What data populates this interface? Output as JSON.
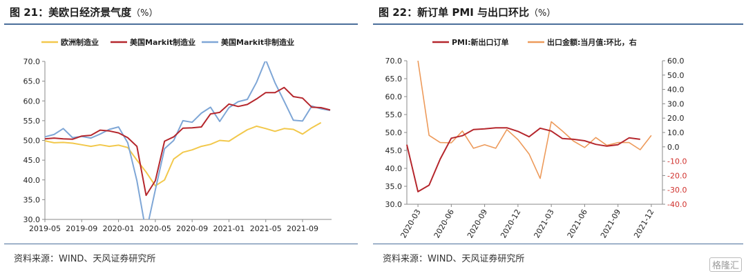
{
  "colors": {
    "yellow": "#F2C84B",
    "red": "#B5262C",
    "blue": "#7EA6D6",
    "orange": "#ED9A5A",
    "neg": "#D0312D"
  },
  "watermark": "格隆汇",
  "chart_data": [
    {
      "type": "line",
      "title": "图 21：美欧日经济景气度",
      "unit": "（%）",
      "source": "资料来源：WIND、天风证券研究所",
      "legend_position": "top",
      "grid": false,
      "x": [
        "2019-05",
        "2019-06",
        "2019-07",
        "2019-08",
        "2019-09",
        "2019-10",
        "2019-11",
        "2019-12",
        "2020-01",
        "2020-02",
        "2020-03",
        "2020-04",
        "2020-05",
        "2020-06",
        "2020-07",
        "2020-08",
        "2020-09",
        "2020-10",
        "2020-11",
        "2020-12",
        "2021-01",
        "2021-02",
        "2021-03",
        "2021-04",
        "2021-05",
        "2021-06",
        "2021-07",
        "2021-08",
        "2021-09",
        "2021-10",
        "2021-11",
        "2021-12"
      ],
      "xticks": [
        "2019-05",
        "2019-09",
        "2020-01",
        "2020-05",
        "2020-09",
        "2021-01",
        "2021-05",
        "2021-09"
      ],
      "yticks": [
        "30.0",
        "35.0",
        "40.0",
        "45.0",
        "50.0",
        "55.0",
        "60.0",
        "65.0",
        "70.0"
      ],
      "ylim": [
        30,
        70
      ],
      "series": [
        {
          "name": "欧洲制造业",
          "color": "#F2C84B",
          "values": [
            49.9,
            49.4,
            49.5,
            49.3,
            48.9,
            48.5,
            48.9,
            48.5,
            48.8,
            48.2,
            45.0,
            42.0,
            38.5,
            40.0,
            45.3,
            47.0,
            47.6,
            48.5,
            49.0,
            50.0,
            49.8,
            51.3,
            52.7,
            53.6,
            53.0,
            52.3,
            53.0,
            52.8,
            51.6,
            53.2,
            54.5,
            null
          ]
        },
        {
          "name": "美国Markit制造业",
          "color": "#B5262C",
          "values": [
            50.4,
            50.6,
            50.4,
            50.3,
            51.1,
            51.3,
            52.6,
            52.4,
            51.9,
            50.7,
            48.5,
            36.1,
            39.8,
            49.8,
            50.9,
            53.1,
            53.2,
            53.4,
            56.7,
            57.1,
            59.2,
            58.6,
            59.1,
            60.5,
            62.1,
            62.1,
            63.4,
            61.1,
            60.7,
            58.4,
            58.3,
            57.7
          ]
        },
        {
          "name": "美国Markit非制造业",
          "color": "#7EA6D6",
          "values": [
            50.9,
            51.5,
            53.0,
            50.7,
            51.0,
            50.6,
            51.6,
            52.8,
            53.4,
            49.4,
            39.8,
            26.7,
            37.5,
            47.9,
            50.0,
            55.0,
            54.6,
            56.9,
            58.4,
            54.8,
            58.3,
            59.8,
            60.4,
            64.7,
            70.4,
            64.6,
            59.9,
            55.1,
            54.9,
            58.7,
            58.0,
            57.6
          ]
        }
      ]
    },
    {
      "type": "line",
      "title": "图 22：新订单 PMI 与出口环比",
      "unit": "（%）",
      "source": "资料来源：WIND、天风证券研究所",
      "legend_position": "top",
      "grid": false,
      "x": [
        "2020-02",
        "2020-03",
        "2020-04",
        "2020-05",
        "2020-06",
        "2020-07",
        "2020-08",
        "2020-09",
        "2020-10",
        "2020-11",
        "2020-12",
        "2021-01",
        "2021-02",
        "2021-03",
        "2021-04",
        "2021-05",
        "2021-06",
        "2021-07",
        "2021-08",
        "2021-09",
        "2021-10",
        "2021-11",
        "2021-12",
        "2022-01"
      ],
      "xticks": [
        "2020-03",
        "2020-06",
        "2020-09",
        "2020-12",
        "2021-03",
        "2021-06",
        "2021-09",
        "2021-12"
      ],
      "yticks": [
        "30.0",
        "35.0",
        "40.0",
        "45.0",
        "50.0",
        "55.0",
        "60.0",
        "65.0",
        "70.0"
      ],
      "ylim": [
        30,
        70
      ],
      "y2ticks": [
        "-40.0",
        "-30.0",
        "-20.0",
        "-10.0",
        "0.0",
        "10.0",
        "20.0",
        "30.0",
        "40.0",
        "50.0",
        "60.0"
      ],
      "y2lim": [
        -40,
        60
      ],
      "series": [
        {
          "name": "PMI:新出口订单",
          "color": "#B5262C",
          "axis": "left",
          "values": [
            46.6,
            33.5,
            35.3,
            42.6,
            48.4,
            49.1,
            50.8,
            51.0,
            51.3,
            51.3,
            50.3,
            48.8,
            51.2,
            50.4,
            48.3,
            48.1,
            47.7,
            46.7,
            46.2,
            46.6,
            48.5,
            48.1,
            null,
            null
          ]
        },
        {
          "name": "出口金额:当月值:环比，右",
          "color": "#ED9A5A",
          "axis": "right",
          "values": [
            null,
            60.0,
            8.0,
            3.0,
            2.8,
            11.0,
            -1.0,
            1.5,
            -1.0,
            12.0,
            5.0,
            -5.0,
            -22.0,
            17.5,
            11.0,
            4.0,
            -0.5,
            6.5,
            1.0,
            3.0,
            3.0,
            -2.0,
            8.0,
            null
          ]
        }
      ]
    }
  ]
}
